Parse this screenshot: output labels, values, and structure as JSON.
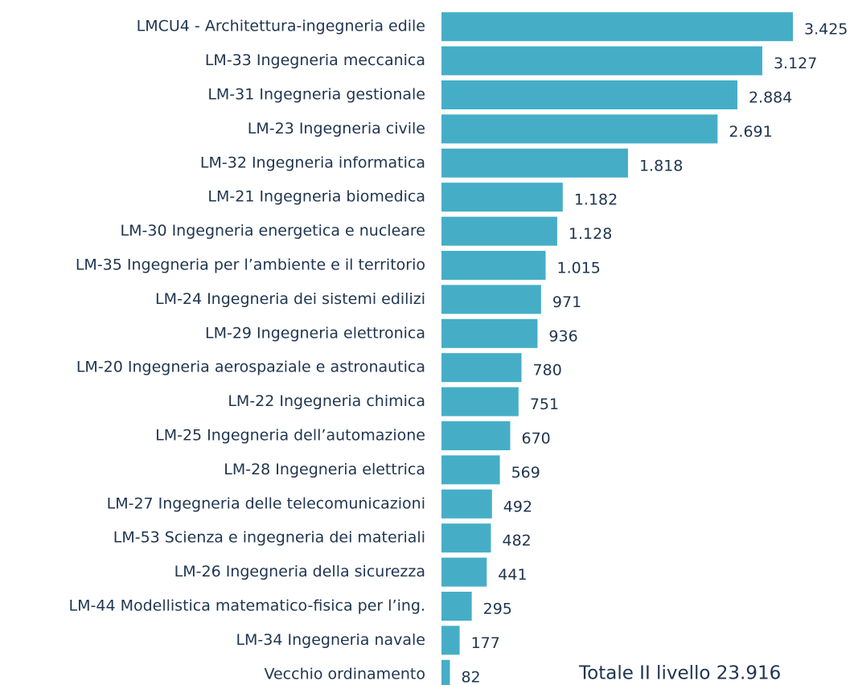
{
  "chart_data": {
    "type": "bar",
    "orientation": "horizontal",
    "color": "#45aec6",
    "categories": [
      "LMCU4 - Architettura-ingegneria edile",
      "LM-33 Ingegneria meccanica",
      "LM-31 Ingegneria gestionale",
      "LM-23 Ingegneria civile",
      "LM-32 Ingegneria informatica",
      "LM-21 Ingegneria biomedica",
      "LM-30 Ingegneria energetica e nucleare",
      "LM-35 Ingegneria per l’ambiente e il territorio",
      "LM-24 Ingegneria dei sistemi edilizi",
      "LM-29 Ingegneria elettronica",
      "LM-20 Ingegneria aerospaziale e astronautica",
      "LM-22 Ingegneria chimica",
      "LM-25 Ingegneria dell’automazione",
      "LM-28 Ingegneria elettrica",
      "LM-27 Ingegneria delle telecomunicazioni",
      "LM-53 Scienza e ingegneria dei materiali",
      "LM-26 Ingegneria della sicurezza",
      "LM-44 Modellistica matematico-fisica per l’ing.",
      "LM-34 Ingegneria navale",
      "Vecchio ordinamento"
    ],
    "values": [
      3425,
      3127,
      2884,
      2691,
      1818,
      1182,
      1128,
      1015,
      971,
      936,
      780,
      751,
      670,
      569,
      492,
      482,
      441,
      295,
      177,
      82
    ],
    "value_labels": [
      "3.425",
      "3.127",
      "2.884",
      "2.691",
      "1.818",
      "1.182",
      "1.128",
      "1.015",
      "971",
      "936",
      "780",
      "751",
      "670",
      "569",
      "492",
      "482",
      "441",
      "295",
      "177",
      "82"
    ],
    "annotation": "Totale II livello 23.916"
  }
}
